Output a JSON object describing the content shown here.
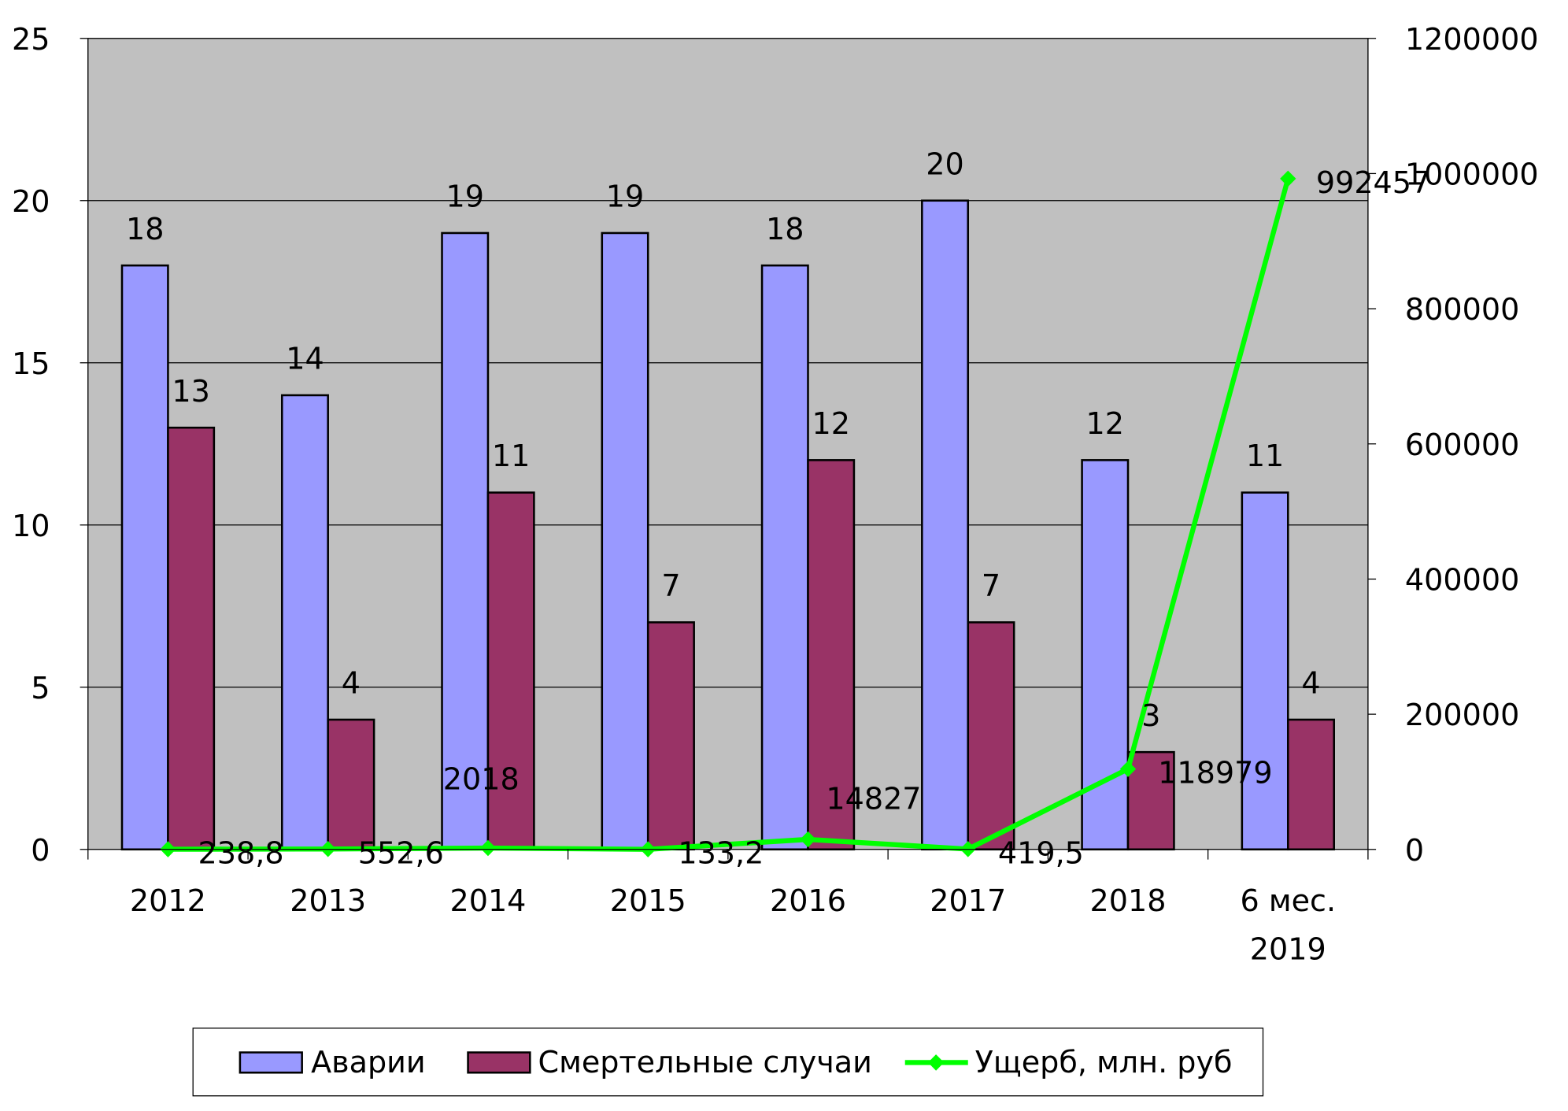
{
  "chart_data": {
    "type": "bar",
    "categories": [
      "2012",
      "2013",
      "2014",
      "2015",
      "2016",
      "2017",
      "2018",
      "6 мес. 2019"
    ],
    "series": [
      {
        "name": "Аварии",
        "type": "bar",
        "axis": "left",
        "color": "#9999ff",
        "values": [
          18,
          14,
          19,
          19,
          18,
          20,
          12,
          11
        ],
        "labels": [
          "18",
          "14",
          "19",
          "19",
          "18",
          "20",
          "12",
          "11"
        ]
      },
      {
        "name": "Смертельные случаи",
        "type": "bar",
        "axis": "left",
        "color": "#993366",
        "values": [
          13,
          4,
          11,
          7,
          12,
          7,
          3,
          4
        ],
        "labels": [
          "13",
          "4",
          "11",
          "7",
          "12",
          "7",
          "3",
          "4"
        ]
      },
      {
        "name": "Ущерб, млн. руб",
        "type": "line",
        "axis": "right",
        "color": "#00ff00",
        "values": [
          238.8,
          552.6,
          2018,
          133.2,
          14827,
          419.5,
          118979,
          992457
        ],
        "labels": [
          "238,8",
          "552,6",
          "2018",
          "133,2",
          "14827",
          "419,5",
          "118979",
          "992457"
        ]
      }
    ],
    "left_axis": {
      "ylim": [
        0,
        25
      ],
      "ticks": [
        "0",
        "5",
        "10",
        "15",
        "20",
        "25"
      ]
    },
    "right_axis": {
      "ylim": [
        0,
        1200000
      ],
      "ticks": [
        "0",
        "200000",
        "400000",
        "600000",
        "800000",
        "1000000",
        "1200000"
      ]
    },
    "grid": true,
    "plot_background": "#c0c0c0",
    "legend_position": "bottom"
  }
}
